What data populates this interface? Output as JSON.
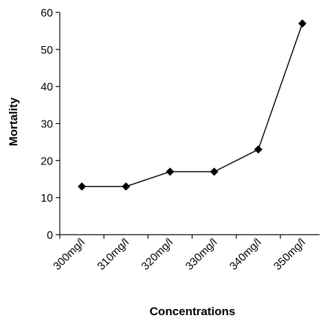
{
  "chart_data": {
    "type": "line",
    "title": "",
    "xlabel": "Concentrations",
    "ylabel": "Mortality",
    "categories": [
      "300mg/l",
      "310mg/l",
      "320mg/l",
      "330mg/l",
      "340mg/l",
      "350mg/l"
    ],
    "values": [
      13,
      13,
      17,
      17,
      23,
      57
    ],
    "ylim": [
      0,
      60
    ],
    "yticks": [
      0,
      10,
      20,
      30,
      40,
      50,
      60
    ],
    "grid": false,
    "legend": "none",
    "marker": "diamond",
    "line_color": "#000000"
  }
}
